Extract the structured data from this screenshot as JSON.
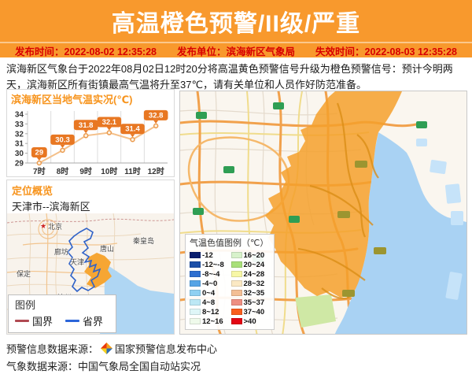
{
  "header": {
    "title": "高温橙色预警/II级/严重",
    "accent_color": "#F8992D",
    "meta_text_color": "#D80000"
  },
  "meta": {
    "items": [
      {
        "label": "发布时间：",
        "value": "2022-08-02 12:35:28"
      },
      {
        "label": "发布单位：",
        "value": "滨海新区气象局"
      },
      {
        "label": "失效时间：",
        "value": "2022-08-03 12:35:28"
      }
    ]
  },
  "warning_text": "滨海新区气象台于2022年08月02日12时20分将高温黄色预警信号升级为橙色预警信号：预计今明两天，滨海新区所有街镇最高气温将升至37℃，请有关单位和人员作好防范准备。",
  "chart_data": {
    "type": "line",
    "title": "滨海新区当地气温实况(℃)",
    "categories": [
      "7时",
      "8时",
      "9时",
      "10时",
      "11时",
      "12时"
    ],
    "values": [
      29,
      30.3,
      31.8,
      32.1,
      31.4,
      32.8
    ],
    "ylim": [
      29,
      34
    ],
    "ytick_step": 1,
    "grid": "vertical",
    "legend_position": "none",
    "line_color": "#F4C08A",
    "point_color": "#EB9A4D",
    "label_bg": "#E87722",
    "label_text_color": "#ffffff"
  },
  "location": {
    "title": "定位概览",
    "value": "天津市--滨海新区",
    "map_labels": [
      "北京",
      "廊坊",
      "天津",
      "唐山",
      "秦皇岛",
      "保定",
      "沧州"
    ],
    "legend": {
      "title": "图例",
      "items": [
        {
          "label": "国界",
          "color": "#B04A52"
        },
        {
          "label": "省界",
          "color": "#2B65D9"
        }
      ]
    }
  },
  "temp_legend": {
    "title": "气温色值图例（℃）",
    "items": [
      {
        "range": "-12",
        "color": "#0A1E6E"
      },
      {
        "range": "-12~-8",
        "color": "#1B4FA8"
      },
      {
        "range": "-8~-4",
        "color": "#2E6FD0"
      },
      {
        "range": "-4~0",
        "color": "#55A4E6"
      },
      {
        "range": "0~4",
        "color": "#8FD0F2"
      },
      {
        "range": "4~8",
        "color": "#BCE8F5"
      },
      {
        "range": "8~12",
        "color": "#DFF6F7"
      },
      {
        "range": "12~16",
        "color": "#EFFAEB"
      },
      {
        "range": "16~20",
        "color": "#D8F2CB"
      },
      {
        "range": "20~24",
        "color": "#A9E07A"
      },
      {
        "range": "24~28",
        "color": "#F7F7A6"
      },
      {
        "range": "28~32",
        "color": "#FBE9C4"
      },
      {
        "range": "32~35",
        "color": "#F3BF95"
      },
      {
        "range": "35~37",
        "color": "#EE8F82"
      },
      {
        "range": "37~40",
        "color": "#F95D1D"
      },
      {
        "range": ">40",
        "color": "#E30613"
      }
    ]
  },
  "footer": {
    "line1_label": "预警信息数据来源：",
    "line1_value": "国家预警信息发布中心",
    "line2": "气象数据来源：中国气象局全国自动站实况"
  }
}
